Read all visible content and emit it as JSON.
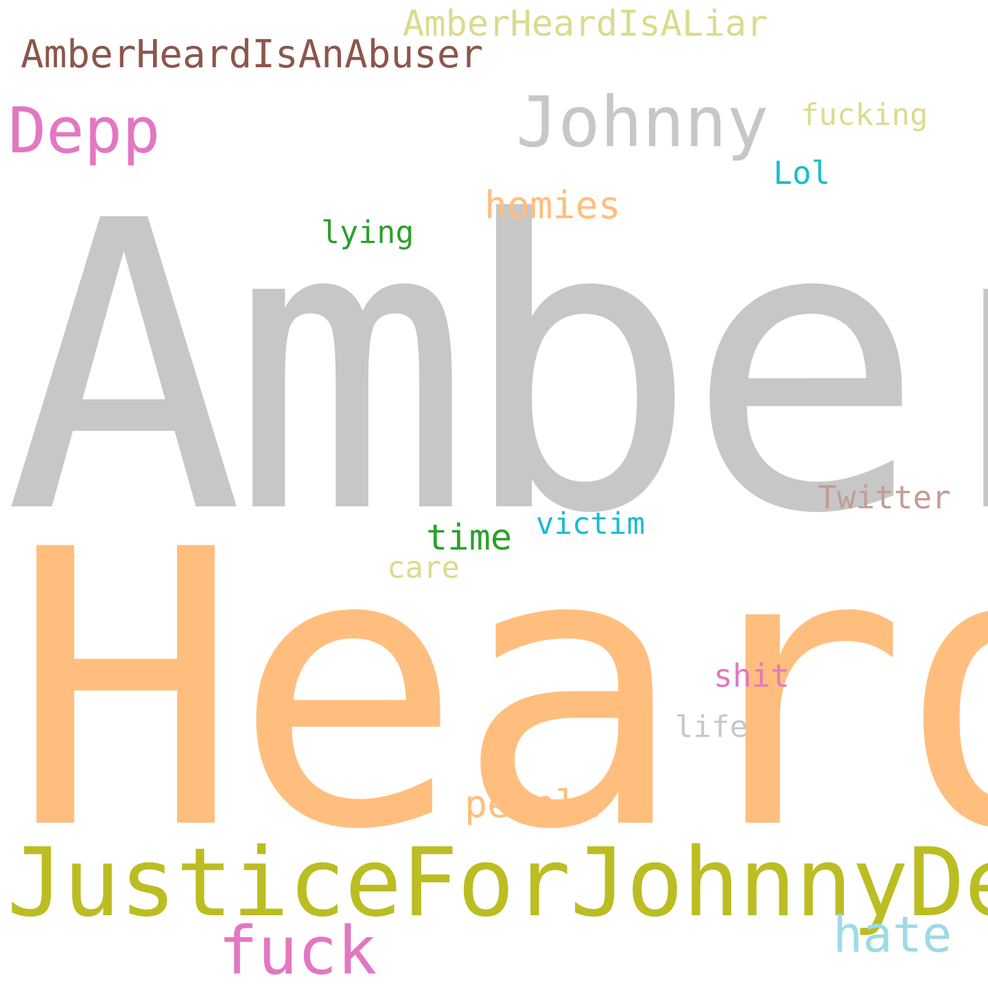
{
  "palette": {
    "background": "#ffffff",
    "gray": "#c7c7c7",
    "orange": "#ffbe7d",
    "olive": "#bcbd22",
    "pink": "#e377c2",
    "brown": "#8c564b",
    "khaki": "#dbdb8d",
    "light_blue": "#9edae5",
    "cyan": "#17becf",
    "green": "#2ca02c",
    "rose_brown": "#c49c94"
  },
  "words": {
    "amber": {
      "text": "Amber",
      "color": "#c7c7c7"
    },
    "heard": {
      "text": "Heard",
      "color": "#ffbe7d"
    },
    "justice": {
      "text": "JusticeForJohnnyDepp",
      "color": "#bcbd22"
    },
    "johnny": {
      "text": "Johnny",
      "color": "#c7c7c7"
    },
    "depp": {
      "text": "Depp",
      "color": "#e377c2"
    },
    "abuser": {
      "text": "AmberHeardIsAnAbuser",
      "color": "#8c564b"
    },
    "liar": {
      "text": "AmberHeardIsALiar",
      "color": "#dbdb8d"
    },
    "fuck": {
      "text": "fuck",
      "color": "#e377c2"
    },
    "hate": {
      "text": "hate",
      "color": "#9edae5"
    },
    "people": {
      "text": "people",
      "color": "#ffbe7d"
    },
    "homies": {
      "text": "homies",
      "color": "#ffbe7d"
    },
    "time": {
      "text": "time",
      "color": "#2ca02c"
    },
    "twitter": {
      "text": "Twitter",
      "color": "#c49c94"
    },
    "victim": {
      "text": "victim",
      "color": "#17becf"
    },
    "fucking": {
      "text": "fucking",
      "color": "#dbdb8d"
    },
    "lying": {
      "text": "lying",
      "color": "#2ca02c"
    },
    "lol": {
      "text": "Lol",
      "color": "#17becf"
    },
    "care": {
      "text": "care",
      "color": "#dbdb8d"
    },
    "shit": {
      "text": "shit",
      "color": "#e377c2"
    },
    "life": {
      "text": "life",
      "color": "#c7c7c7"
    }
  }
}
